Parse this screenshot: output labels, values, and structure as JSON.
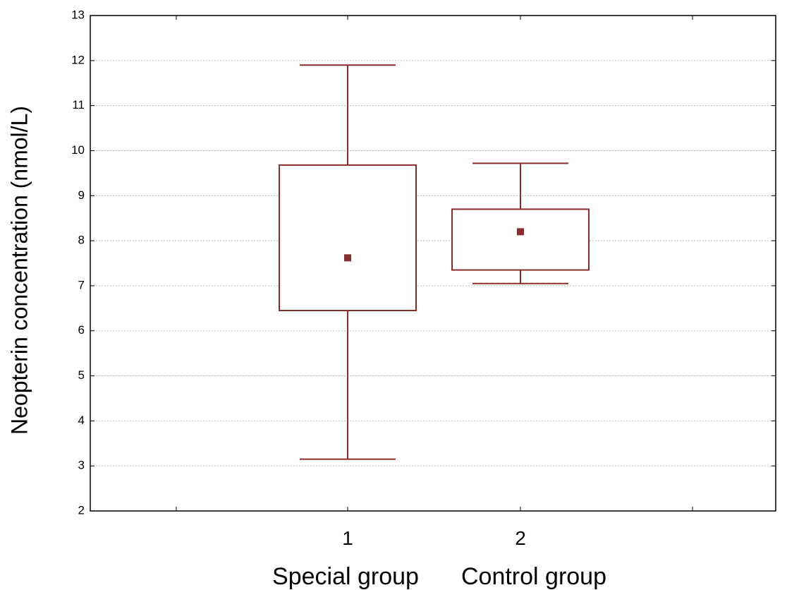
{
  "chart_data": {
    "type": "box",
    "title": "",
    "ylabel": "Neopterin concentration (nmol/L)",
    "xlabel": "",
    "ylim": [
      2,
      13
    ],
    "yticks": [
      "2",
      "3",
      "4",
      "5",
      "6",
      "7",
      "8",
      "9",
      "10",
      "11",
      "12",
      "13"
    ],
    "categories": [
      "1",
      "2"
    ],
    "group_labels": [
      "Special group",
      "Control group"
    ],
    "grid": true,
    "series": [
      {
        "category": "1",
        "whisker_low": 3.15,
        "box_low": 6.45,
        "center": 7.62,
        "box_high": 9.68,
        "whisker_high": 11.9
      },
      {
        "category": "2",
        "whisker_low": 7.05,
        "box_low": 7.35,
        "center": 8.2,
        "box_high": 8.7,
        "whisker_high": 9.72
      }
    ],
    "colors": {
      "box": "#8b2c2c",
      "axis": "#000000",
      "grid": "#b9b9b9"
    }
  }
}
